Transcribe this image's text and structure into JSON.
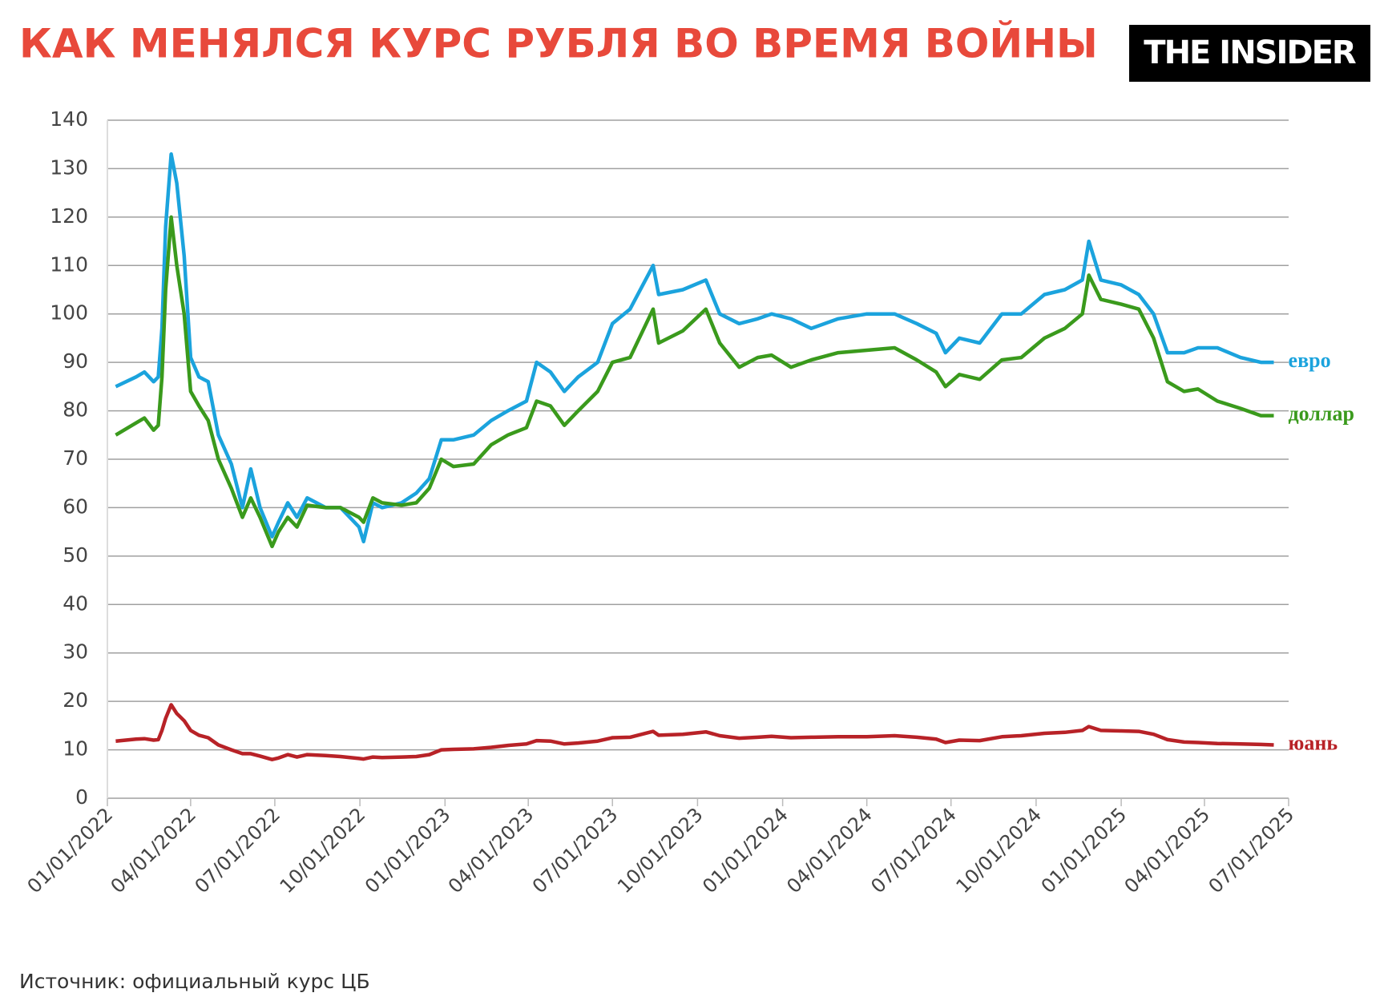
{
  "chart_data": {
    "type": "line",
    "title": "КАК МЕНЯЛСЯ КУРС РУБЛЯ ВО ВРЕМЯ ВОЙНЫ",
    "logo": "THE INSIDER",
    "source": "Источник: официальный курс ЦБ",
    "x": [
      "2022-01-10",
      "2022-02-01",
      "2022-02-10",
      "2022-02-20",
      "2022-02-25",
      "2022-03-01",
      "2022-03-05",
      "2022-03-11",
      "2022-03-17",
      "2022-03-25",
      "2022-04-01",
      "2022-04-10",
      "2022-04-20",
      "2022-05-01",
      "2022-05-15",
      "2022-05-27",
      "2022-06-05",
      "2022-06-15",
      "2022-06-28",
      "2022-07-05",
      "2022-07-15",
      "2022-07-25",
      "2022-08-05",
      "2022-08-25",
      "2022-09-10",
      "2022-09-30",
      "2022-10-05",
      "2022-10-15",
      "2022-10-25",
      "2022-11-15",
      "2022-12-01",
      "2022-12-15",
      "2022-12-28",
      "2023-01-10",
      "2023-02-01",
      "2023-02-20",
      "2023-03-10",
      "2023-03-30",
      "2023-04-10",
      "2023-04-25",
      "2023-05-10",
      "2023-05-25",
      "2023-06-15",
      "2023-07-01",
      "2023-07-20",
      "2023-08-14",
      "2023-08-20",
      "2023-09-15",
      "2023-10-10",
      "2023-10-25",
      "2023-11-15",
      "2023-12-05",
      "2023-12-20",
      "2024-01-10",
      "2024-02-01",
      "2024-03-01",
      "2024-04-01",
      "2024-05-01",
      "2024-05-25",
      "2024-06-15",
      "2024-06-25",
      "2024-07-10",
      "2024-08-01",
      "2024-08-25",
      "2024-09-15",
      "2024-10-10",
      "2024-11-01",
      "2024-11-20",
      "2024-11-27",
      "2024-12-10",
      "2025-01-01",
      "2025-01-20",
      "2025-02-05",
      "2025-02-20",
      "2025-03-10",
      "2025-03-25",
      "2025-04-15",
      "2025-05-10",
      "2025-06-01",
      "2025-06-15"
    ],
    "series": [
      {
        "name": "евро",
        "color": "#1ba3dd",
        "values": [
          85,
          87,
          88,
          86,
          87,
          97,
          118,
          133,
          127,
          112,
          91,
          87,
          86,
          75,
          69,
          60,
          68,
          60,
          54,
          57,
          61,
          58,
          62,
          60,
          60,
          56,
          53,
          61,
          60,
          61,
          63,
          66,
          74,
          74,
          75,
          78,
          80,
          82,
          90,
          88,
          84,
          87,
          90,
          98,
          101,
          110,
          104,
          105,
          107,
          100,
          98,
          99,
          100,
          99,
          97,
          99,
          100,
          100,
          98,
          96,
          92,
          95,
          94,
          100,
          100,
          104,
          105,
          107,
          115,
          107,
          106,
          104,
          100,
          92,
          92,
          93,
          93,
          91,
          90,
          90
        ]
      },
      {
        "name": "доллар",
        "color": "#3a9a1c",
        "values": [
          75,
          77.5,
          78.5,
          76,
          77,
          87,
          105,
          120,
          110,
          100,
          84,
          81,
          78,
          70,
          64,
          58,
          62,
          58,
          52,
          55,
          58,
          56,
          60.5,
          60,
          60,
          58,
          57,
          62,
          61,
          60.5,
          61,
          64,
          70,
          68.5,
          69,
          73,
          75,
          76.5,
          82,
          81,
          77,
          80,
          84,
          90,
          91,
          101,
          94,
          96.5,
          101,
          94,
          89,
          91,
          91.5,
          89,
          90.5,
          92,
          92.5,
          93,
          90.5,
          88,
          85,
          87.5,
          86.5,
          90.5,
          91,
          95,
          97,
          100,
          108,
          103,
          102,
          101,
          95,
          86,
          84,
          84.5,
          82,
          80.5,
          79,
          79
        ]
      },
      {
        "name": "юань",
        "color": "#b82227",
        "values": [
          11.8,
          12.2,
          12.3,
          12,
          12.1,
          14,
          16.5,
          19.3,
          17.5,
          16,
          14,
          13,
          12.5,
          11,
          10,
          9.2,
          9.2,
          8.7,
          8,
          8.3,
          9,
          8.5,
          9,
          8.8,
          8.6,
          8.2,
          8.1,
          8.5,
          8.4,
          8.5,
          8.6,
          9,
          10,
          10.1,
          10.2,
          10.5,
          10.9,
          11.2,
          11.9,
          11.8,
          11.2,
          11.4,
          11.8,
          12.5,
          12.6,
          13.8,
          13,
          13.2,
          13.7,
          12.9,
          12.4,
          12.6,
          12.8,
          12.5,
          12.6,
          12.7,
          12.7,
          12.9,
          12.6,
          12.2,
          11.5,
          12,
          11.9,
          12.7,
          12.9,
          13.4,
          13.6,
          14,
          14.8,
          14,
          13.9,
          13.8,
          13.2,
          12.1,
          11.6,
          11.5,
          11.3,
          11.2,
          11.1,
          11
        ]
      }
    ],
    "xlim": [
      "2022-01-01",
      "2025-07-01"
    ],
    "xticks": [
      {
        "value": "2022-01-01",
        "label": "01/01/2022"
      },
      {
        "value": "2022-04-01",
        "label": "04/01/2022"
      },
      {
        "value": "2022-07-01",
        "label": "07/01/2022"
      },
      {
        "value": "2022-10-01",
        "label": "10/01/2022"
      },
      {
        "value": "2023-01-01",
        "label": "01/01/2023"
      },
      {
        "value": "2023-04-01",
        "label": "04/01/2023"
      },
      {
        "value": "2023-07-01",
        "label": "07/01/2023"
      },
      {
        "value": "2023-10-01",
        "label": "10/01/2023"
      },
      {
        "value": "2024-01-01",
        "label": "01/01/2024"
      },
      {
        "value": "2024-04-01",
        "label": "04/01/2024"
      },
      {
        "value": "2024-07-01",
        "label": "07/01/2024"
      },
      {
        "value": "2024-10-01",
        "label": "10/01/2024"
      },
      {
        "value": "2025-01-01",
        "label": "01/01/2025"
      },
      {
        "value": "2025-04-01",
        "label": "04/01/2025"
      },
      {
        "value": "2025-07-01",
        "label": "07/01/2025"
      }
    ],
    "ylim": [
      0,
      140
    ],
    "yticks": [
      0,
      10,
      20,
      30,
      40,
      50,
      60,
      70,
      80,
      90,
      100,
      110,
      120,
      130,
      140
    ],
    "grid": true
  }
}
